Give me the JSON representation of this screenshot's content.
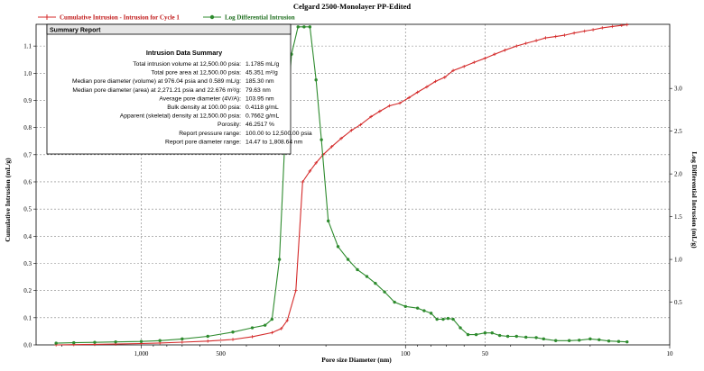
{
  "chart_data": {
    "type": "line",
    "title": "Celgard 2500-Monolayer PP-Edited",
    "xlabel": "Pore size Diameter (nm)",
    "ylabel_left": "Cumulative Intrusion (mL/g)",
    "ylabel_right": "Log Differential Intrusion (mL/g)",
    "x_scale": "log",
    "x_reversed": true,
    "xlim": [
      2500,
      10
    ],
    "x_ticks": [
      1000,
      500,
      100,
      50,
      10
    ],
    "x_tick_labels": [
      "1,000",
      "500",
      "100",
      "50",
      "10"
    ],
    "ylim_left": [
      0,
      1.18
    ],
    "y_ticks_left": [
      0.0,
      0.1,
      0.2,
      0.3,
      0.4,
      0.5,
      0.6,
      0.7,
      0.8,
      0.9,
      1.0,
      1.1
    ],
    "y_tick_labels_left": [
      "0.0",
      "0.1",
      "0.2",
      "0.3",
      "0.4",
      "0.5",
      "0.6",
      "0.7",
      "0.8",
      "0.9",
      "1.0",
      "1.1"
    ],
    "ylim_right": [
      0,
      3.75
    ],
    "y_ticks_right": [
      0.5,
      1.0,
      1.5,
      2.0,
      2.5,
      3.0
    ],
    "y_tick_labels_right": [
      "0.5",
      "1.0",
      "1.5",
      "2.0",
      "2.5",
      "3.0"
    ],
    "grid": true,
    "legend_position": "top",
    "series": [
      {
        "name": "Cumulative Intrusion - Intrusion for Cycle 1",
        "color": "#d42a2a",
        "marker": "plus",
        "axis": "left",
        "x": [
          2100,
          1800,
          1500,
          1250,
          1000,
          850,
          700,
          560,
          450,
          380,
          320,
          295,
          280,
          260,
          245,
          230,
          218,
          205,
          190,
          175,
          160,
          148,
          135,
          125,
          115,
          105,
          97,
          90,
          83,
          77,
          71,
          66,
          60,
          55,
          50,
          46,
          42,
          38,
          35,
          32,
          29.5,
          27,
          25,
          23,
          21,
          19.5,
          18,
          16.5,
          15.2,
          14.5
        ],
        "y": [
          0.0,
          0.001,
          0.002,
          0.003,
          0.005,
          0.007,
          0.01,
          0.014,
          0.02,
          0.03,
          0.045,
          0.06,
          0.09,
          0.2,
          0.6,
          0.64,
          0.67,
          0.7,
          0.73,
          0.76,
          0.79,
          0.81,
          0.84,
          0.86,
          0.88,
          0.89,
          0.91,
          0.93,
          0.95,
          0.97,
          0.985,
          1.01,
          1.025,
          1.04,
          1.055,
          1.07,
          1.085,
          1.1,
          1.11,
          1.12,
          1.13,
          1.135,
          1.14,
          1.148,
          1.155,
          1.16,
          1.167,
          1.172,
          1.176,
          1.1785
        ]
      },
      {
        "name": "Log Differential Intrusion",
        "color": "#2e8b2e",
        "marker": "dot",
        "axis": "right",
        "x": [
          2100,
          1800,
          1500,
          1250,
          1000,
          850,
          700,
          560,
          450,
          380,
          340,
          320,
          300,
          285,
          270,
          255,
          242,
          230,
          218,
          208,
          196,
          180,
          165,
          152,
          140,
          130,
          120,
          110,
          100,
          90,
          85,
          80,
          76,
          72,
          69,
          66,
          62,
          58,
          54,
          50,
          47,
          44,
          41,
          38,
          35,
          32,
          30,
          27,
          24,
          22,
          20,
          18.5,
          17,
          15.6,
          14.5
        ],
        "y": [
          0.02,
          0.025,
          0.03,
          0.035,
          0.04,
          0.05,
          0.07,
          0.1,
          0.15,
          0.2,
          0.23,
          0.3,
          1.0,
          2.5,
          3.4,
          3.72,
          3.72,
          3.72,
          3.1,
          2.4,
          1.45,
          1.15,
          1.0,
          0.88,
          0.8,
          0.72,
          0.62,
          0.5,
          0.45,
          0.43,
          0.4,
          0.37,
          0.3,
          0.3,
          0.31,
          0.3,
          0.2,
          0.12,
          0.12,
          0.14,
          0.14,
          0.11,
          0.1,
          0.1,
          0.09,
          0.085,
          0.07,
          0.05,
          0.05,
          0.055,
          0.07,
          0.06,
          0.045,
          0.04,
          0.035
        ]
      }
    ]
  },
  "summary": {
    "header": "Summary Report",
    "title": "Intrusion Data Summary",
    "rows": [
      {
        "label": "Total intrusion volume at 12,500.00 psia:",
        "value": "1.1785 mL/g"
      },
      {
        "label": "Total pore area at 12,500.00 psia:",
        "value": "45.351 m²/g"
      },
      {
        "label": "Median pore diameter (volume) at 976.04 psia and 0.589 mL/g:",
        "value": "185.30 nm"
      },
      {
        "label": "Median pore diameter (area) at 2,271.21 psia and 22.676 m²/g:",
        "value": "79.63 nm"
      },
      {
        "label": "Average pore diameter (4V/A):",
        "value": "103.95 nm"
      },
      {
        "label": "Bulk density at 100.00 psia:",
        "value": "0.4118 g/mL"
      },
      {
        "label": "Apparent (skeletal) density at 12,500.00 psia:",
        "value": "0.7662 g/mL"
      },
      {
        "label": "Porosity:",
        "value": "46.2517 %"
      },
      {
        "label": "Report pressure range:",
        "value": "100.00 to 12,500.00 psia"
      },
      {
        "label": "Report pore diameter range:",
        "value": "14.47 to 1,808.64 nm"
      }
    ]
  }
}
